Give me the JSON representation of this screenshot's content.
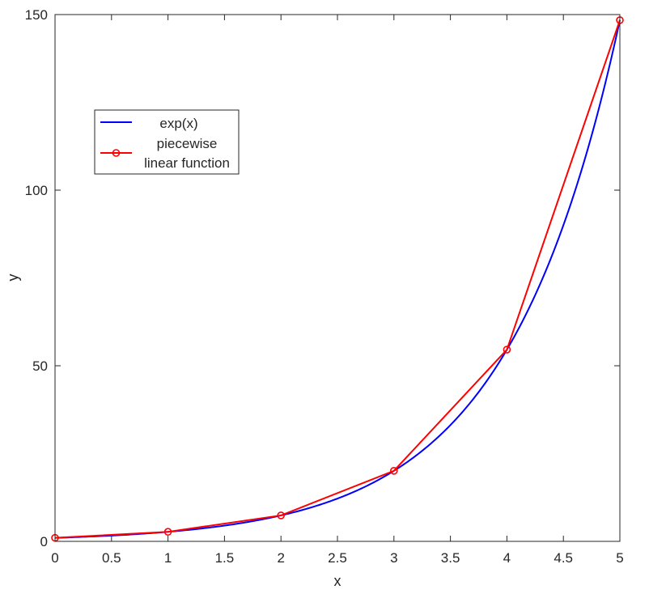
{
  "chart_data": {
    "type": "line",
    "title": "",
    "xlabel": "x",
    "ylabel": "y",
    "xlim": [
      0,
      5
    ],
    "ylim": [
      0,
      150
    ],
    "xticks": [
      0,
      0.5,
      1,
      1.5,
      2,
      2.5,
      3,
      3.5,
      4,
      4.5,
      5
    ],
    "xtick_labels": [
      "0",
      "0.5",
      "1",
      "1.5",
      "2",
      "2.5",
      "3",
      "3.5",
      "4",
      "4.5",
      "5"
    ],
    "yticks": [
      0,
      50,
      100,
      150
    ],
    "ytick_labels": [
      "0",
      "50",
      "100",
      "150"
    ],
    "grid": false,
    "legend": {
      "placement": "upper-left",
      "entries": [
        "exp(x)",
        "piecewise linear function"
      ],
      "lines": [
        [
          "exp(x)"
        ],
        [
          "piecewise",
          "linear function"
        ]
      ]
    },
    "series": [
      {
        "name": "exp(x)",
        "color": "#0000ff",
        "marker": "none",
        "function": "exp(x)",
        "x_range": [
          0,
          5
        ]
      },
      {
        "name": "piecewise linear function",
        "color": "#ff0000",
        "marker": "circle",
        "x": [
          0,
          1,
          2,
          3,
          4,
          5
        ],
        "y": [
          1,
          2.718,
          7.389,
          20.086,
          54.598,
          148.41
        ]
      }
    ]
  }
}
